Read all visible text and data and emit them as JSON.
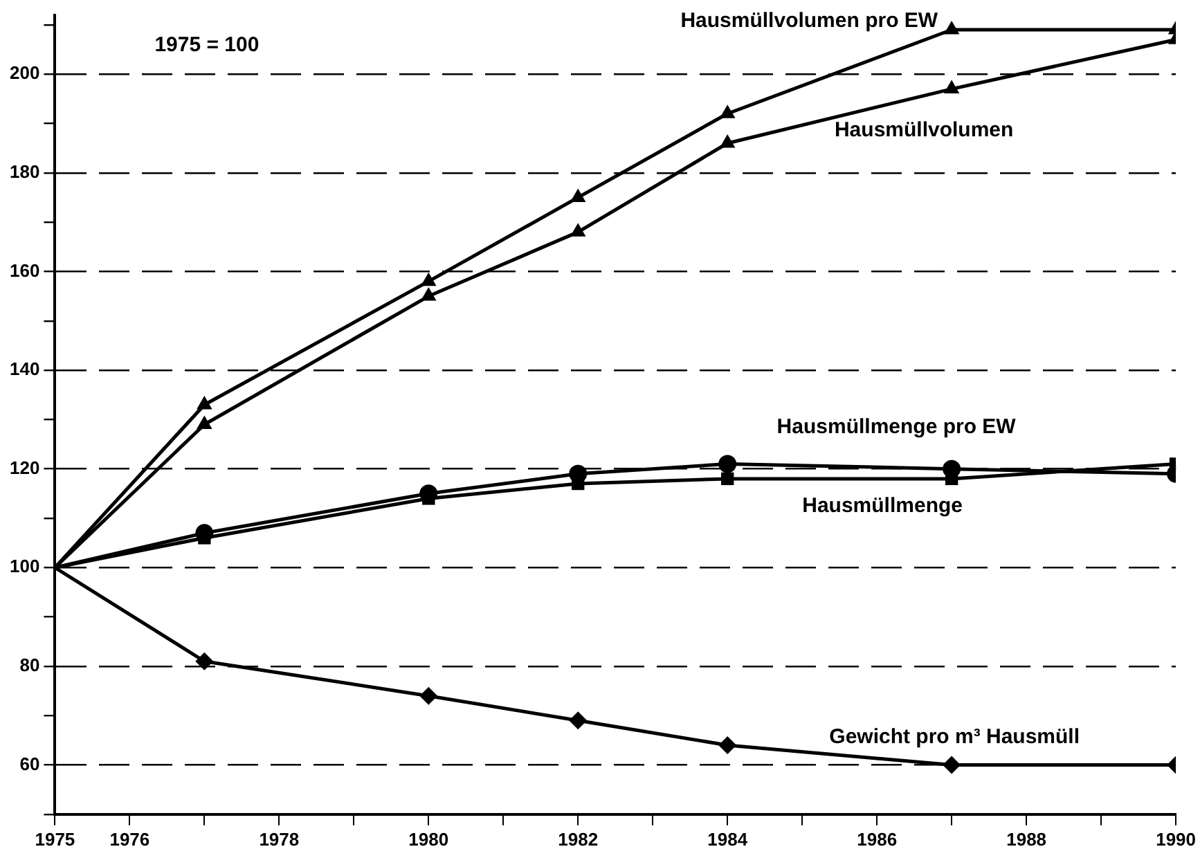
{
  "chart_data": {
    "type": "line",
    "x": [
      1975,
      1977,
      1980,
      1982,
      1984,
      1987,
      1990
    ],
    "xlim": [
      1975,
      1990
    ],
    "xticks": [
      1975,
      1976,
      {
        "value": 1977,
        "label": null
      },
      1978,
      {
        "value": 1979,
        "label": null
      },
      1980,
      {
        "value": 1981,
        "label": null
      },
      1982,
      {
        "value": 1983,
        "label": null
      },
      1984,
      {
        "value": 1985,
        "label": null
      },
      1986,
      {
        "value": 1987,
        "label": null
      },
      1988,
      {
        "value": 1989,
        "label": null
      },
      1990
    ],
    "ylim": [
      50,
      212
    ],
    "yticks": [
      {
        "value": 50,
        "label": null
      },
      60,
      {
        "value": 70,
        "label": null
      },
      80,
      {
        "value": 90,
        "label": null
      },
      100,
      {
        "value": 110,
        "label": null
      },
      120,
      {
        "value": 130,
        "label": null
      },
      140,
      {
        "value": 150,
        "label": null
      },
      160,
      {
        "value": 170,
        "label": null
      },
      180,
      {
        "value": 190,
        "label": null
      },
      200,
      {
        "value": 210,
        "label": null
      }
    ],
    "grid": "y",
    "legend": false,
    "line_style": "solid",
    "annotations": [
      "1975 = 100"
    ],
    "series": [
      {
        "name": "Hausmüllvolumen pro EW",
        "color": "#000000",
        "marker": "triangle",
        "values": [
          100,
          133,
          158,
          175,
          192,
          209,
          209
        ]
      },
      {
        "name": "Hausmüllvolumen",
        "color": "#000000",
        "marker": "triangle",
        "values": [
          100,
          129,
          155,
          168,
          186,
          197,
          207
        ]
      },
      {
        "name": "Hausmüllmenge pro EW",
        "color": "#000000",
        "marker": "circle",
        "values": [
          100,
          107,
          115,
          119,
          121,
          120,
          119
        ]
      },
      {
        "name": "Hausmüllmenge",
        "color": "#000000",
        "marker": "square",
        "values": [
          100,
          106,
          114,
          117,
          118,
          118,
          121
        ]
      },
      {
        "name": "Gewicht pro m³ Hausmüll",
        "color": "#000000",
        "marker": "diamond",
        "values": [
          100,
          81,
          74,
          69,
          64,
          60,
          60
        ]
      }
    ]
  }
}
